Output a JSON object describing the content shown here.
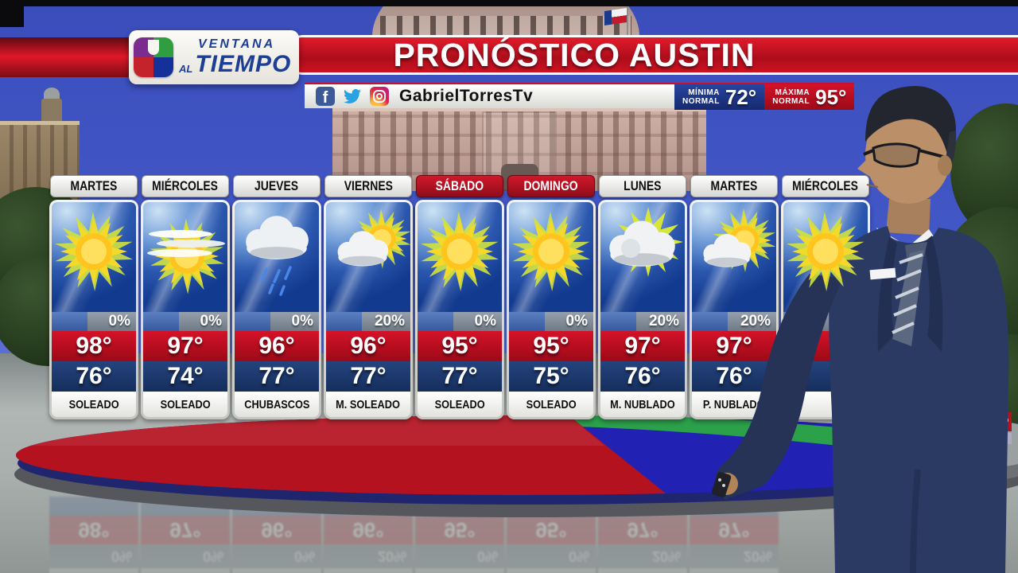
{
  "brand": {
    "logo_line1": "VENTANA",
    "logo_line2_small": "AL",
    "logo_line2_big": "TIEMPO",
    "network_icon": "univision-u-icon"
  },
  "header": {
    "title": "PRONÓSTICO AUSTIN",
    "social_handle": "GabrielTorresTv",
    "social_icons": [
      "facebook-icon",
      "twitter-icon",
      "instagram-icon"
    ],
    "minima_label_top": "MÍNIMA",
    "minima_label_bottom": "NORMAL",
    "minima_value": "72°",
    "maxima_label_top": "MÁXIMA",
    "maxima_label_bottom": "NORMAL",
    "maxima_value": "95°"
  },
  "forecast": {
    "days": [
      {
        "day": "MARTES",
        "icon": "sunny",
        "precip": "0%",
        "high": "98°",
        "low": "76°",
        "condition": "SOLEADO",
        "weekend": false
      },
      {
        "day": "MIÉRCOLES",
        "icon": "mostly-sunny",
        "precip": "0%",
        "high": "97°",
        "low": "74°",
        "condition": "SOLEADO",
        "weekend": false
      },
      {
        "day": "JUEVES",
        "icon": "rain",
        "precip": "0%",
        "high": "96°",
        "low": "77°",
        "condition": "CHUBASCOS",
        "weekend": false
      },
      {
        "day": "VIERNES",
        "icon": "partly-sunny",
        "precip": "20%",
        "high": "96°",
        "low": "77°",
        "condition": "M. SOLEADO",
        "weekend": false
      },
      {
        "day": "SÁBADO",
        "icon": "sunny",
        "precip": "0%",
        "high": "95°",
        "low": "77°",
        "condition": "SOLEADO",
        "weekend": true
      },
      {
        "day": "DOMINGO",
        "icon": "sunny",
        "precip": "0%",
        "high": "95°",
        "low": "75°",
        "condition": "SOLEADO",
        "weekend": true
      },
      {
        "day": "LUNES",
        "icon": "mostly-cloudy",
        "precip": "20%",
        "high": "97°",
        "low": "76°",
        "condition": "M. NUBLADO",
        "weekend": false
      },
      {
        "day": "MARTES",
        "icon": "partly-cloudy",
        "precip": "20%",
        "high": "97°",
        "low": "76°",
        "condition": "P. NUBLADO",
        "weekend": false
      },
      {
        "day": "MIÉRCOLES",
        "icon": "sunny",
        "precip": "",
        "high": "",
        "low": "",
        "condition": "",
        "weekend": false
      }
    ]
  },
  "colors": {
    "title_red": "#c8102e",
    "weekend_header_red": "#b5121f",
    "high_band_red": "#b80d1e",
    "low_band_blue": "#1c3a70",
    "minima_blue": "#1d3a9e",
    "sky_blue": "#4257c6",
    "disc_red": "#b5121f",
    "disc_blue": "#2121b4",
    "disc_green": "#2ba14a"
  }
}
